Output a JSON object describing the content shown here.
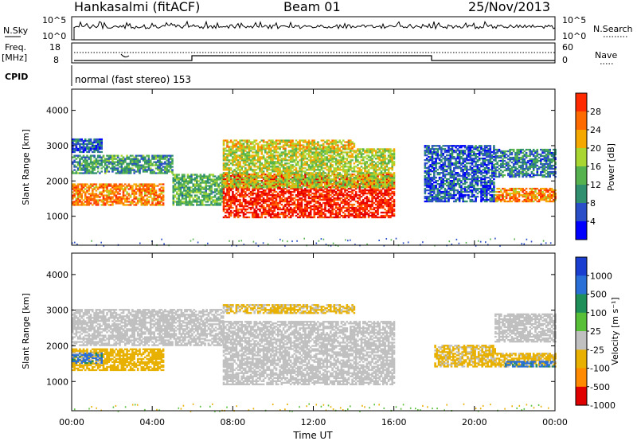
{
  "header": {
    "station": "Hankasalmi (fitACF)",
    "beam": "Beam 01",
    "date": "25/Nov/2013"
  },
  "top_panels": {
    "nsky_label": "N.Sky",
    "nsky_ticks": [
      "10^5",
      "10^0"
    ],
    "nsearch_label": "N.Search",
    "nsearch_ticks": [
      "10^5",
      "10^0"
    ],
    "freq_label": "Freq.",
    "freq_unit": "[MHz]",
    "freq_ticks": [
      "18",
      "8"
    ],
    "nave_label": "Nave",
    "nave_ticks": [
      "60",
      "0"
    ],
    "cpid_label": "CPID",
    "cpid_text": "normal (fast stereo) 153"
  },
  "colors": {
    "power_scale": [
      "#0000ff",
      "#2a4dc8",
      "#2f8f6e",
      "#56b24e",
      "#a9d631",
      "#f5a800",
      "#ff6a00",
      "#ff2a00",
      "#e60000"
    ],
    "velocity_scale": [
      "#1a3fd0",
      "#2a6fd8",
      "#1f8f5a",
      "#57c037",
      "#c0c0c0",
      "#e8b000",
      "#ff8a00",
      "#ff4d00",
      "#e00000"
    ],
    "ground_scatter": "#c0c0c0"
  },
  "chart_data": [
    {
      "type": "heatmap",
      "name": "power",
      "ylabel": "Slant Range [km]",
      "ylim": [
        180,
        4600
      ],
      "yticks": [
        "1000",
        "2000",
        "3000",
        "4000"
      ],
      "xlim": [
        0,
        24
      ],
      "colorbar_label": "Power [dB]",
      "colorbar_ticks": [
        "4",
        "8",
        "12",
        "16",
        "20",
        "24",
        "28"
      ],
      "colorbar_range": [
        0,
        32
      ],
      "echo_bands": [
        {
          "t0": 0.0,
          "t1": 4.5,
          "r0": 1300,
          "r1": 1900,
          "level": 22
        },
        {
          "t0": 0.0,
          "t1": 5.0,
          "r0": 2200,
          "r1": 2700,
          "level": 10
        },
        {
          "t0": 0.0,
          "t1": 1.5,
          "r0": 2800,
          "r1": 3200,
          "level": 6
        },
        {
          "t0": 5.0,
          "t1": 7.5,
          "r0": 1300,
          "r1": 2200,
          "level": 12
        },
        {
          "t0": 7.5,
          "t1": 16.0,
          "r0": 950,
          "r1": 2200,
          "level": 28
        },
        {
          "t0": 7.5,
          "t1": 16.0,
          "r0": 1800,
          "r1": 2900,
          "level": 16
        },
        {
          "t0": 7.5,
          "t1": 14.0,
          "r0": 2900,
          "r1": 3150,
          "level": 18
        },
        {
          "t0": 21.0,
          "t1": 24.0,
          "r0": 1400,
          "r1": 1800,
          "level": 22
        },
        {
          "t0": 21.0,
          "t1": 24.0,
          "r0": 2100,
          "r1": 2900,
          "level": 8
        },
        {
          "t0": 17.5,
          "t1": 21.0,
          "r0": 1400,
          "r1": 3000,
          "level": 6
        }
      ]
    },
    {
      "type": "heatmap",
      "name": "velocity",
      "ylabel": "Slant Range [km]",
      "ylim": [
        180,
        4600
      ],
      "yticks": [
        "1000",
        "2000",
        "3000",
        "4000"
      ],
      "xlabel": "Time UT",
      "xlim": [
        0,
        24
      ],
      "xticks": [
        "00:00",
        "04:00",
        "08:00",
        "12:00",
        "16:00",
        "20:00",
        "00:00"
      ],
      "colorbar_label": "Velocity [m s⁻¹]",
      "colorbar_ticks": [
        "1000",
        "500",
        "100",
        "25",
        "-25",
        "-100",
        "-500",
        "-1000"
      ],
      "echo_bands": [
        {
          "t0": 0.0,
          "t1": 4.5,
          "r0": 1300,
          "r1": 1900,
          "vel": -300
        },
        {
          "t0": 0.0,
          "t1": 1.5,
          "r0": 1500,
          "r1": 1800,
          "vel": 150
        },
        {
          "t0": 0.0,
          "t1": 7.5,
          "r0": 2000,
          "r1": 3000,
          "vel": 0
        },
        {
          "t0": 7.5,
          "t1": 16.0,
          "r0": 900,
          "r1": 2700,
          "vel": 0
        },
        {
          "t0": 7.5,
          "t1": 14.0,
          "r0": 2900,
          "r1": 3150,
          "vel": -200
        },
        {
          "t0": 21.0,
          "t1": 24.0,
          "r0": 1400,
          "r1": 1800,
          "vel": -250
        },
        {
          "t0": 21.5,
          "t1": 24.0,
          "r0": 1400,
          "r1": 1550,
          "vel": 200
        },
        {
          "t0": 18.0,
          "t1": 21.0,
          "r0": 1400,
          "r1": 2000,
          "vel": -200
        },
        {
          "t0": 21.0,
          "t1": 24.0,
          "r0": 2100,
          "r1": 2900,
          "vel": 0
        }
      ]
    }
  ]
}
